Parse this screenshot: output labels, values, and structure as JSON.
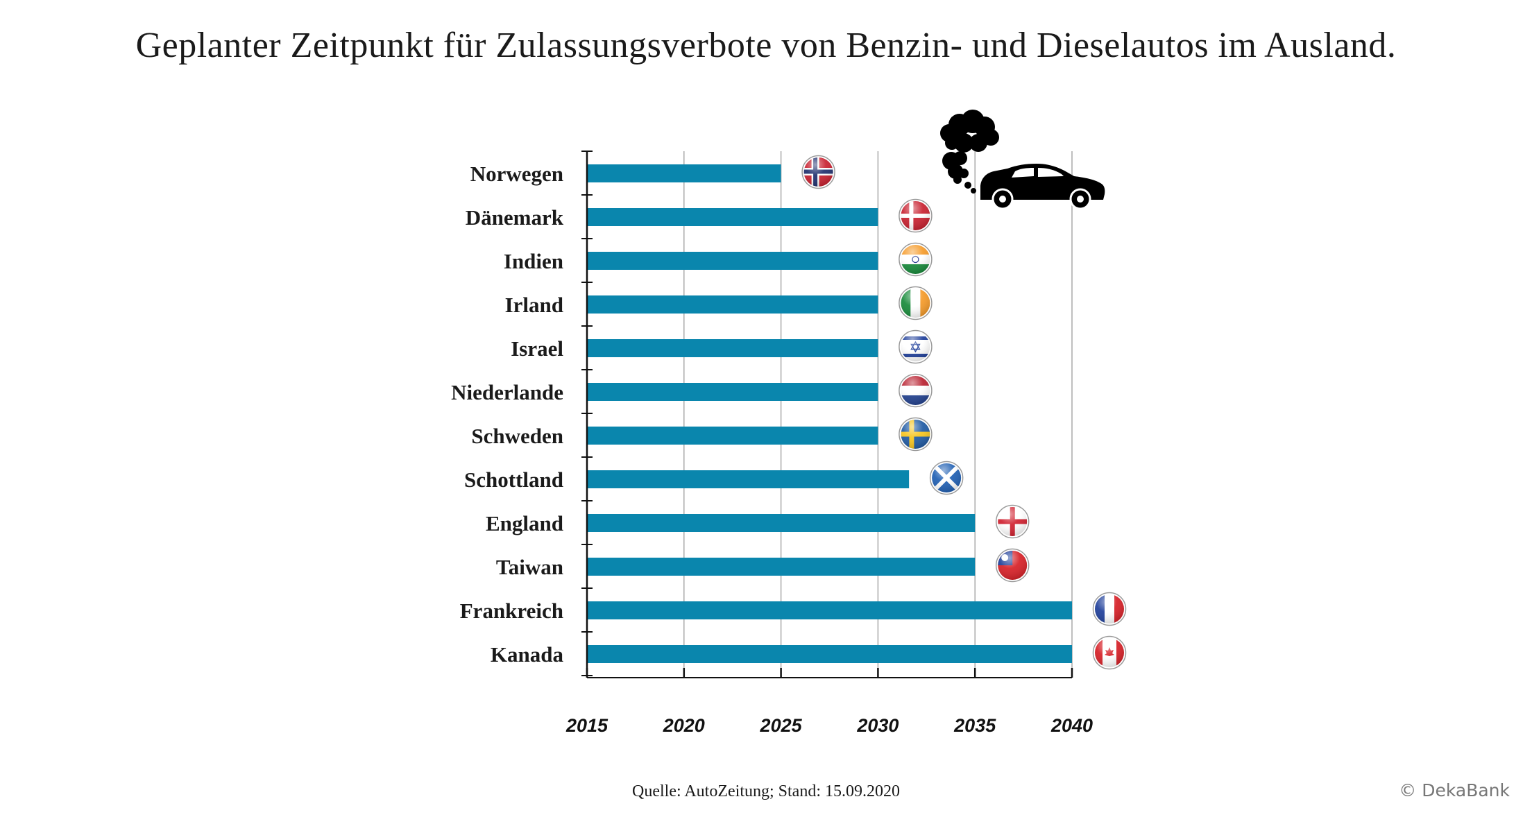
{
  "colors": {
    "bar": "#0a86ad",
    "grid": "#a9a9a9",
    "axis": "#111111"
  },
  "chart_data": {
    "type": "bar",
    "orientation": "horizontal",
    "title": "Geplanter Zeitpunkt für Zulassungsverbote von Benzin- und Dieselautos im Ausland.",
    "categories": [
      "Norwegen",
      "Dänemark",
      "Indien",
      "Irland",
      "Israel",
      "Niederlande",
      "Schweden",
      "Schottland",
      "England",
      "Taiwan",
      "Frankreich",
      "Kanada"
    ],
    "values": [
      2025,
      2030,
      2030,
      2030,
      2030,
      2030,
      2030,
      2031.6,
      2035,
      2035,
      2040,
      2040
    ],
    "xlim": [
      2015,
      2040
    ],
    "xticks": [
      "2015",
      "2020",
      "2025",
      "2030",
      "2035",
      "2040"
    ],
    "grid": true,
    "flags": [
      "norway-flag-icon",
      "denmark-flag-icon",
      "india-flag-icon",
      "ireland-flag-icon",
      "israel-flag-icon",
      "netherlands-flag-icon",
      "sweden-flag-icon",
      "scotland-flag-icon",
      "england-flag-icon",
      "taiwan-flag-icon",
      "france-flag-icon",
      "canada-flag-icon"
    ],
    "decoration": "polluting-car-icon"
  },
  "footer": {
    "source": "Quelle: AutoZeitung; Stand: 15.09.2020",
    "copyright": "© DekaBank"
  }
}
